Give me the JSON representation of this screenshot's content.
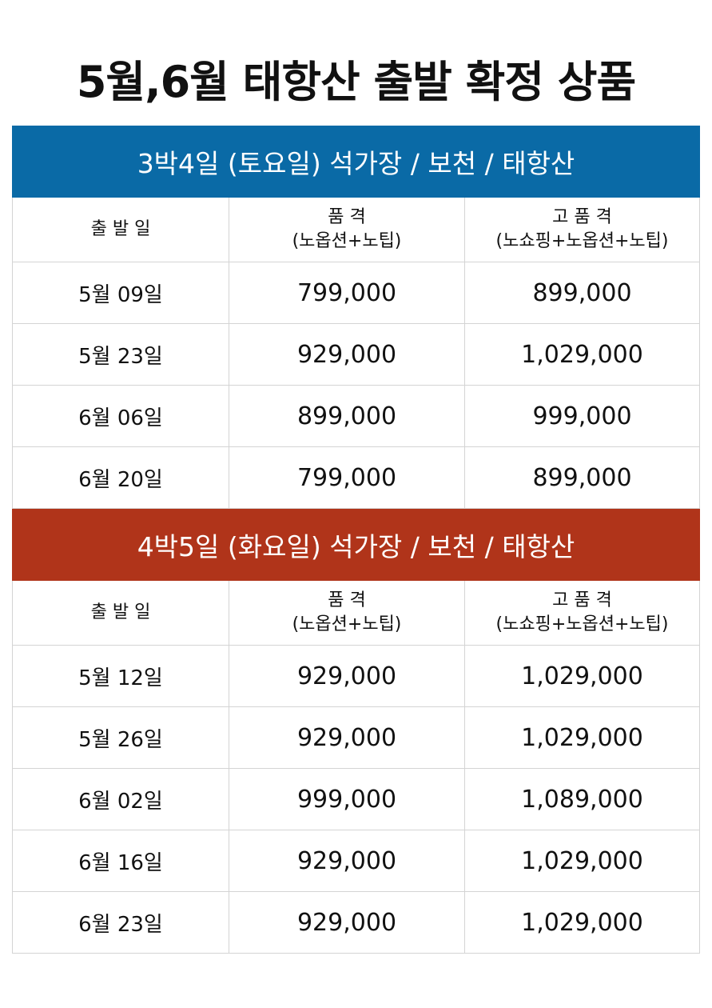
{
  "title": "5월,6월 태항산 출발 확정 상품",
  "sections": [
    {
      "header": "3박4일 (토요일) 석가장 / 보천 / 태항산",
      "color": "#0a6aa6",
      "columns": [
        [
          "출 발 일"
        ],
        [
          "품 격",
          "(노옵션+노팁)"
        ],
        [
          "고 품 격",
          "(노쇼핑+노옵션+노팁)"
        ]
      ],
      "rows": [
        [
          "5월 09일",
          "799,000",
          "899,000"
        ],
        [
          "5월 23일",
          "929,000",
          "1,029,000"
        ],
        [
          "6월 06일",
          "899,000",
          "999,000"
        ],
        [
          "6월 20일",
          "799,000",
          "899,000"
        ]
      ]
    },
    {
      "header": "4박5일 (화요일) 석가장 / 보천 / 태항산",
      "color": "#b0341a",
      "columns": [
        [
          "출 발 일"
        ],
        [
          "품 격",
          "(노옵션+노팁)"
        ],
        [
          "고 품 격",
          "(노쇼핑+노옵션+노팁)"
        ]
      ],
      "rows": [
        [
          "5월 12일",
          "929,000",
          "1,029,000"
        ],
        [
          "5월 26일",
          "929,000",
          "1,029,000"
        ],
        [
          "6월 02일",
          "999,000",
          "1,089,000"
        ],
        [
          "6월 16일",
          "929,000",
          "1,029,000"
        ],
        [
          "6월 23일",
          "929,000",
          "1,029,000"
        ]
      ]
    }
  ]
}
